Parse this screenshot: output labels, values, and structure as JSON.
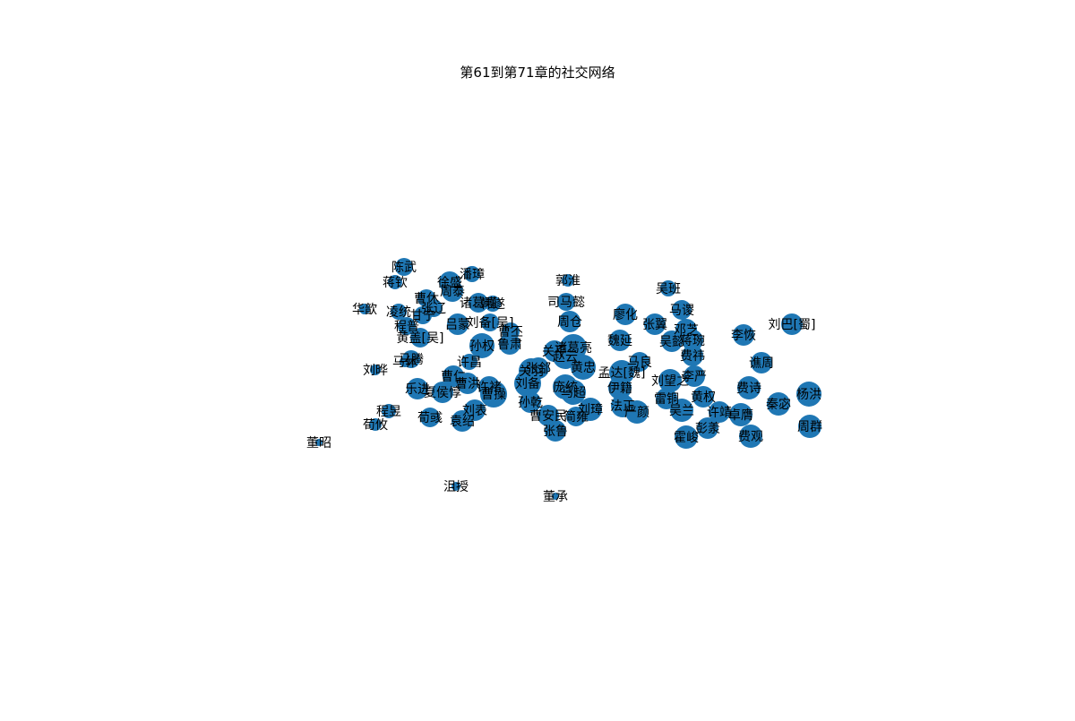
{
  "title": "第61到第71章的社交网络",
  "node_color": "#1f77b4",
  "nodes": [
    {
      "id": "陈武",
      "label": "陈武"
    },
    {
      "id": "蒋钦",
      "label": "蒋钦"
    },
    {
      "id": "徐盛",
      "label": "徐盛"
    },
    {
      "id": "潘璋",
      "label": "潘璋"
    },
    {
      "id": "周泰",
      "label": "周泰"
    },
    {
      "id": "曹休",
      "label": "曹休"
    },
    {
      "id": "华歆",
      "label": "华歆"
    },
    {
      "id": "凌统",
      "label": "凌统"
    },
    {
      "id": "甘宁",
      "label": "甘宁"
    },
    {
      "id": "张辽",
      "label": "张辽"
    },
    {
      "id": "诸葛瑾",
      "label": "诸葛瑾"
    },
    {
      "id": "韩遂",
      "label": "韩遂"
    },
    {
      "id": "程普",
      "label": "程普"
    },
    {
      "id": "吕蒙",
      "label": "吕蒙"
    },
    {
      "id": "刘备[吴]",
      "label": "刘备[吴]"
    },
    {
      "id": "黄盖[吴]",
      "label": "黄盖[吴]"
    },
    {
      "id": "曹丕",
      "label": "曹丕"
    },
    {
      "id": "孙权",
      "label": "孙权"
    },
    {
      "id": "鲁肃",
      "label": "鲁肃"
    },
    {
      "id": "许昌",
      "label": "许昌"
    },
    {
      "id": "马腾",
      "label": "马腾"
    },
    {
      "id": "马休",
      "label": "马休"
    },
    {
      "id": "刘晔",
      "label": "刘晔"
    },
    {
      "id": "曹仁",
      "label": "曹仁"
    },
    {
      "id": "乐进",
      "label": "乐进"
    },
    {
      "id": "夏侯惇",
      "label": "夏侯惇"
    },
    {
      "id": "曹洪",
      "label": "曹洪"
    },
    {
      "id": "许褚",
      "label": "许褚"
    },
    {
      "id": "曹操",
      "label": "曹操"
    },
    {
      "id": "刘表",
      "label": "刘表"
    },
    {
      "id": "袁绍",
      "label": "袁绍"
    },
    {
      "id": "程昱",
      "label": "程昱"
    },
    {
      "id": "荀攸",
      "label": "荀攸"
    },
    {
      "id": "荀彧",
      "label": "荀彧"
    },
    {
      "id": "董昭",
      "label": "董昭"
    },
    {
      "id": "沮授",
      "label": "沮授"
    },
    {
      "id": "董承",
      "label": "董承"
    },
    {
      "id": "郭淮",
      "label": "郭淮"
    },
    {
      "id": "司马懿",
      "label": "司马懿"
    },
    {
      "id": "周仓",
      "label": "周仓"
    },
    {
      "id": "关平",
      "label": "关平"
    },
    {
      "id": "诸葛亮",
      "label": "诸葛亮"
    },
    {
      "id": "赵云",
      "label": "赵云"
    },
    {
      "id": "关羽",
      "label": "关羽"
    },
    {
      "id": "张郃",
      "label": "张郃"
    },
    {
      "id": "黄忠",
      "label": "黄忠"
    },
    {
      "id": "刘备",
      "label": "刘备"
    },
    {
      "id": "庞统",
      "label": "庞统"
    },
    {
      "id": "马超",
      "label": "马超"
    },
    {
      "id": "孙乾",
      "label": "孙乾"
    },
    {
      "id": "曹安民",
      "label": "曹安民"
    },
    {
      "id": "张鲁",
      "label": "张鲁"
    },
    {
      "id": "刘璋",
      "label": "刘璋"
    },
    {
      "id": "简雍",
      "label": "简雍"
    },
    {
      "id": "魏延",
      "label": "魏延"
    },
    {
      "id": "廖化",
      "label": "廖化"
    },
    {
      "id": "马良",
      "label": "马良"
    },
    {
      "id": "孟达[魏]",
      "label": "孟达[魏]"
    },
    {
      "id": "伊籍",
      "label": "伊籍"
    },
    {
      "id": "法正",
      "label": "法正"
    },
    {
      "id": "严颜",
      "label": "严颜"
    },
    {
      "id": "吴班",
      "label": "吴班"
    },
    {
      "id": "张翼",
      "label": "张翼"
    },
    {
      "id": "马谡",
      "label": "马谡"
    },
    {
      "id": "邓芝",
      "label": "邓芝"
    },
    {
      "id": "吴懿",
      "label": "吴懿"
    },
    {
      "id": "蒋琬",
      "label": "蒋琬"
    },
    {
      "id": "费祎",
      "label": "费祎"
    },
    {
      "id": "刘望之",
      "label": "刘望之"
    },
    {
      "id": "李严",
      "label": "李严"
    },
    {
      "id": "雷铜",
      "label": "雷铜"
    },
    {
      "id": "黄权",
      "label": "黄权"
    },
    {
      "id": "吴兰",
      "label": "吴兰"
    },
    {
      "id": "许靖",
      "label": "许靖"
    },
    {
      "id": "彭羕",
      "label": "彭羕"
    },
    {
      "id": "霍峻",
      "label": "霍峻"
    },
    {
      "id": "卓膺",
      "label": "卓膺"
    },
    {
      "id": "李恢",
      "label": "李恢"
    },
    {
      "id": "刘巴[蜀]",
      "label": "刘巴[蜀]"
    },
    {
      "id": "谯周",
      "label": "谯周"
    },
    {
      "id": "费诗",
      "label": "费诗"
    },
    {
      "id": "秦宓",
      "label": "秦宓"
    },
    {
      "id": "杨洪",
      "label": "杨洪"
    },
    {
      "id": "费观",
      "label": "费观"
    },
    {
      "id": "周群",
      "label": "周群"
    }
  ]
}
